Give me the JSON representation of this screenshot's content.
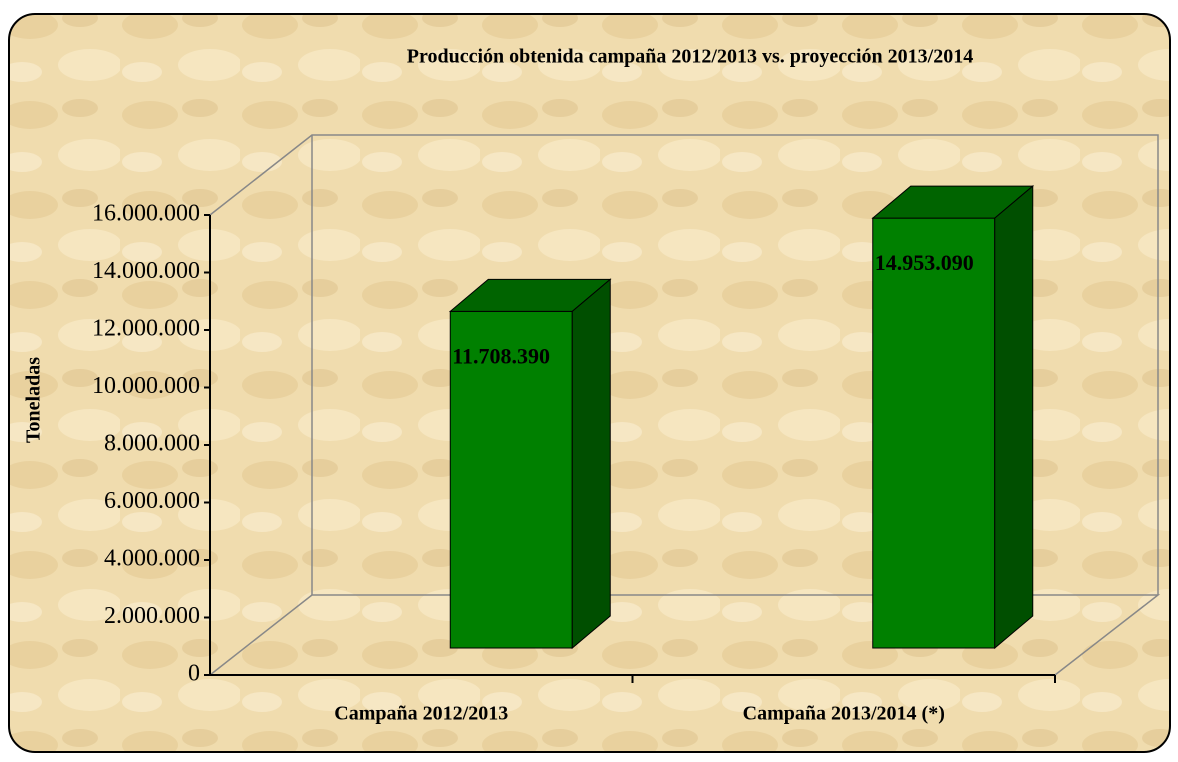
{
  "chart_data": {
    "type": "bar3d",
    "title": "Producción obtenida campaña 2012/2013 vs.  proyección 2013/2014",
    "ylabel": "Toneladas",
    "categories": [
      "Campaña 2012/2013",
      "Campaña 2013/2014 (*)"
    ],
    "values": [
      11708390,
      14953090
    ],
    "value_labels": [
      "11.708.390",
      "14.953.090"
    ],
    "color": "#008000",
    "ylim": [
      0,
      16000000
    ],
    "yticks": [
      0,
      {
        "value": 2000000,
        "label": "2.000.000"
      },
      {
        "value": 4000000,
        "label": "4.000.000"
      },
      {
        "value": 6000000,
        "label": "6.000.000"
      },
      {
        "value": 8000000,
        "label": "8.000.000"
      },
      {
        "value": 10000000,
        "label": "10.000.000"
      },
      {
        "value": 12000000,
        "label": "12.000.000"
      },
      {
        "value": 14000000,
        "label": "14.000.000"
      },
      {
        "value": 16000000,
        "label": "16.000.000"
      }
    ],
    "grid": false
  }
}
